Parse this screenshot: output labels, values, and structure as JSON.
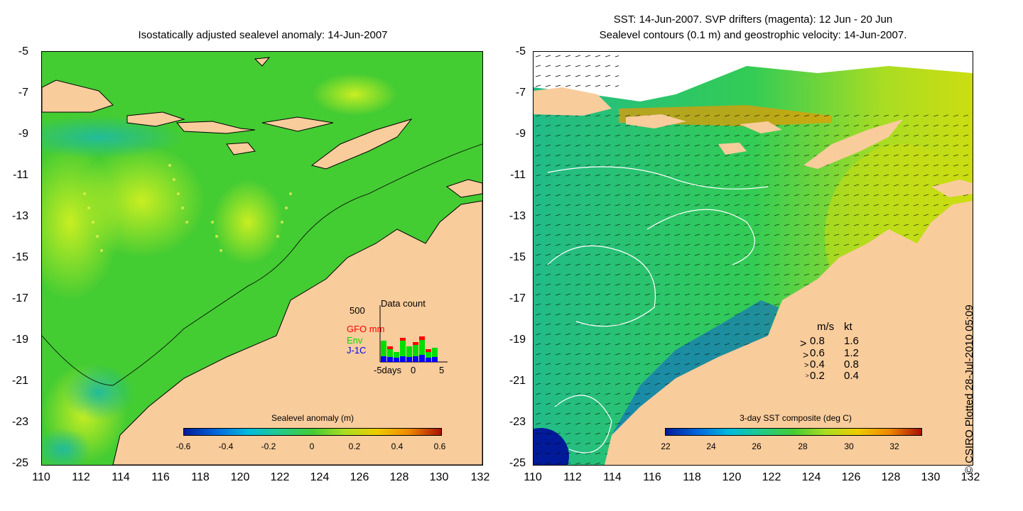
{
  "left_panel": {
    "title": "Isostatically adjusted sealevel anomaly: 14-Jun-2007",
    "colorbar_label": "Sealevel anomaly (m)",
    "colorbar_ticks": [
      "-0.6",
      "-0.4",
      "-0.2",
      "0",
      "0.2",
      "0.4",
      "0.6"
    ],
    "inset": {
      "title": "Data count",
      "ymax_label": "500",
      "series_labels": [
        {
          "name": "GFO mm",
          "color": "#ff0000"
        },
        {
          "name": "Env",
          "color": "#00dd00"
        },
        {
          "name": "J-1C",
          "color": "#0000ff"
        }
      ],
      "xlabels": [
        "-5days",
        "0",
        "5"
      ]
    }
  },
  "right_panel": {
    "title_line1": "SST: 14-Jun-2007. SVP drifters (magenta): 12 Jun - 20 Jun",
    "title_line2": "Sealevel contours (0.1 m) and geostrophic velocity: 14-Jun-2007.",
    "colorbar_label": "3-day SST composite (deg C)",
    "colorbar_ticks": [
      "22",
      "24",
      "26",
      "28",
      "30",
      "32"
    ],
    "legend": {
      "header_ms": "m/s",
      "header_kt": "kt",
      "rows": [
        {
          "ms": "0.8",
          "kt": "1.6"
        },
        {
          "ms": "0.6",
          "kt": "1.2"
        },
        {
          "ms": "0.4",
          "kt": "0.8"
        },
        {
          "ms": "0.2",
          "kt": "0.4"
        }
      ]
    }
  },
  "y_ticks": [
    "-5",
    "-7",
    "-9",
    "-11",
    "-13",
    "-15",
    "-17",
    "-19",
    "-21",
    "-23",
    "-25"
  ],
  "x_ticks": [
    "110",
    "112",
    "114",
    "116",
    "118",
    "120",
    "122",
    "124",
    "126",
    "128",
    "130",
    "132"
  ],
  "copyright": "© CSIRO Plotted 28-Jul-2010 05:09",
  "colors": {
    "land": "#f9cc9c",
    "ocean_green": "#33cc33",
    "ocean_yellowgreen": "#99e633",
    "ocean_cyan": "#22bb88"
  }
}
